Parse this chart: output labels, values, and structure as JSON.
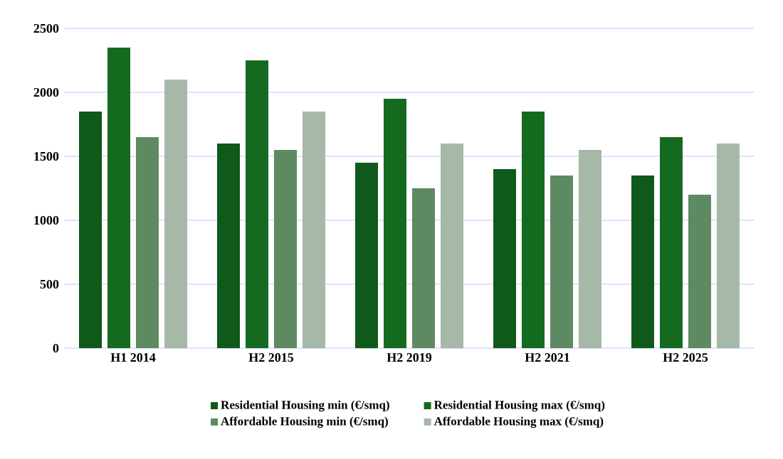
{
  "chart_data": {
    "type": "bar",
    "categories": [
      "H1 2014",
      "H2 2015",
      "H2 2019",
      "H2 2021",
      "H2 2025"
    ],
    "series": [
      {
        "name": "Residential Housing min (€/smq)",
        "color": "#0f5a1a",
        "values": [
          1850,
          1600,
          1450,
          1400,
          1350
        ]
      },
      {
        "name": "Residential Housing max (€/smq)",
        "color": "#146b20",
        "values": [
          2350,
          2250,
          1950,
          1850,
          1650
        ]
      },
      {
        "name": "Affordable Housing min (€/smq)",
        "color": "#5e8a62",
        "values": [
          1650,
          1550,
          1250,
          1350,
          1200
        ]
      },
      {
        "name": "Affordable Housing max (€/smq)",
        "color": "#a6b8a8",
        "values": [
          2100,
          1850,
          1600,
          1550,
          1600
        ]
      }
    ],
    "ylim": [
      0,
      2500
    ],
    "yticks": [
      0,
      500,
      1000,
      1500,
      2000,
      2500
    ],
    "grid": "y",
    "legend": "bottom"
  }
}
